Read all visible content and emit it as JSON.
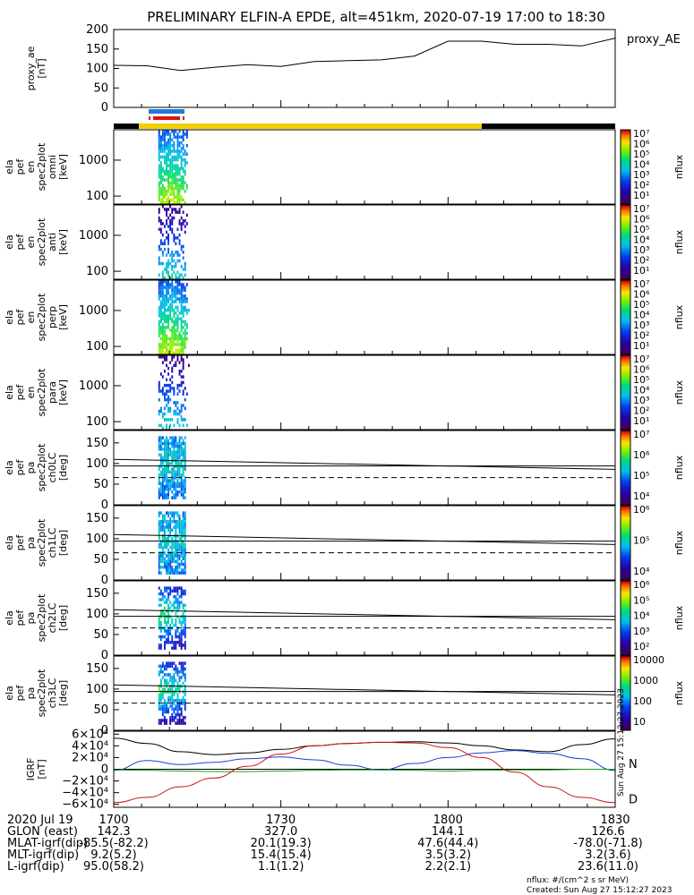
{
  "title": "PRELIMINARY ELFIN-A EPDE, alt=451km, 2020-07-19 17:00 to 18:30",
  "time_axis": {
    "date_label": "2020 Jul 19",
    "ticks": [
      "1700",
      "1730",
      "1800",
      "1830"
    ],
    "ephemeris": [
      {
        "label": "GLON (east)",
        "values": [
          "142.3",
          "327.0",
          "144.1",
          "126.6"
        ]
      },
      {
        "label": "MLAT-igrf(dip)",
        "values": [
          "-85.5(-82.2)",
          "20.1(19.3)",
          "47.6(44.4)",
          "-78.0(-71.8)"
        ]
      },
      {
        "label": "MLT-igrf(dip)",
        "values": [
          "9.2(5.2)",
          "15.4(15.4)",
          "3.5(3.2)",
          "3.2(3.6)"
        ]
      },
      {
        "label": "L-igrf(dip)",
        "values": [
          "95.0(58.2)",
          "1.1(1.2)",
          "2.2(2.1)",
          "23.6(11.0)"
        ]
      }
    ]
  },
  "footer": {
    "units": "nflux: #/(cm^2 s sr MeV)",
    "created": "Created: Sun Aug 27 15:12:27 2023",
    "side_stamp": "Sun Aug 27 15:12:27 2023"
  },
  "colors": {
    "series_black": "#000000",
    "series_blue": "#1f3fd0",
    "series_green": "#18a018",
    "series_red": "#d01010",
    "bar_yellow": "#f2d000",
    "bar_black": "#000000",
    "marker_blue": "#1c7ad6",
    "marker_red": "#e01010"
  },
  "chart_data": [
    {
      "type": "line",
      "panel": "proxy_ae",
      "ylabel": [
        "proxy_ae",
        "[nT]"
      ],
      "legend": "proxy_AE",
      "ylim": [
        0,
        200
      ],
      "yticks": [
        "0",
        "50",
        "100",
        "150",
        "200"
      ],
      "x": [
        "17:00",
        "17:06",
        "17:12",
        "17:18",
        "17:24",
        "17:30",
        "17:36",
        "17:42",
        "17:48",
        "17:54",
        "18:00",
        "18:06",
        "18:12",
        "18:18",
        "18:24",
        "18:30"
      ],
      "values": [
        108,
        107,
        95,
        103,
        110,
        105,
        118,
        120,
        122,
        132,
        170,
        170,
        162,
        162,
        158,
        178
      ]
    },
    {
      "type": "heatmap",
      "panel": "omni",
      "ylabel": [
        "ela",
        "pef",
        "en",
        "spec2plot",
        "omni",
        "[keV]"
      ],
      "yticks": [
        "100",
        "1000"
      ],
      "colorbar": {
        "label": "nflux",
        "ticks": [
          "10⁷",
          "10⁶",
          "10⁵",
          "10⁴",
          "10³",
          "10²",
          "10¹"
        ]
      },
      "active_interval": [
        "17:08",
        "17:14"
      ]
    },
    {
      "type": "heatmap",
      "panel": "anti",
      "ylabel": [
        "ela",
        "pef",
        "en",
        "spec2plot",
        "anti",
        "[keV]"
      ],
      "yticks": [
        "100",
        "1000"
      ],
      "colorbar": {
        "label": "nflux",
        "ticks": [
          "10⁷",
          "10⁶",
          "10⁵",
          "10⁴",
          "10³",
          "10²",
          "10¹"
        ]
      },
      "active_interval": [
        "17:08",
        "17:14"
      ]
    },
    {
      "type": "heatmap",
      "panel": "perp",
      "ylabel": [
        "ela",
        "pef",
        "en",
        "spec2plot",
        "perp",
        "[keV]"
      ],
      "yticks": [
        "100",
        "1000"
      ],
      "colorbar": {
        "label": "nflux",
        "ticks": [
          "10⁷",
          "10⁶",
          "10⁵",
          "10⁴",
          "10³",
          "10²",
          "10¹"
        ]
      },
      "active_interval": [
        "17:08",
        "17:14"
      ]
    },
    {
      "type": "heatmap",
      "panel": "para",
      "ylabel": [
        "ela",
        "pef",
        "en",
        "spec2plot",
        "para",
        "[keV]"
      ],
      "yticks": [
        "100",
        "1000"
      ],
      "colorbar": {
        "label": "nflux",
        "ticks": [
          "10⁷",
          "10⁶",
          "10⁵",
          "10⁴",
          "10³",
          "10²",
          "10¹"
        ]
      },
      "active_interval": [
        "17:08",
        "17:14"
      ]
    },
    {
      "type": "heatmap",
      "panel": "ch0LC",
      "ylabel": [
        "ela",
        "pef",
        "pa",
        "spec2plot",
        "ch0LC",
        "[deg]"
      ],
      "ylim": [
        0,
        180
      ],
      "yticks": [
        "0",
        "50",
        "100",
        "150"
      ],
      "colorbar": {
        "label": "nflux",
        "ticks": [
          "10⁷",
          "10⁶",
          "10⁵",
          "10⁴"
        ]
      },
      "active_interval": [
        "17:08",
        "17:14"
      ],
      "loss_cone_deg": [
        110,
        86
      ],
      "anti_loss_cone_deg": [
        70,
        94
      ],
      "dashed_deg": 66
    },
    {
      "type": "heatmap",
      "panel": "ch1LC",
      "ylabel": [
        "ela",
        "pef",
        "pa",
        "spec2plot",
        "ch1LC",
        "[deg]"
      ],
      "ylim": [
        0,
        180
      ],
      "yticks": [
        "0",
        "50",
        "100",
        "150"
      ],
      "colorbar": {
        "label": "nflux",
        "ticks": [
          "10⁶",
          "10⁵",
          "10⁴"
        ]
      },
      "active_interval": [
        "17:08",
        "17:14"
      ],
      "loss_cone_deg": [
        110,
        86
      ],
      "anti_loss_cone_deg": [
        70,
        94
      ],
      "dashed_deg": 66
    },
    {
      "type": "heatmap",
      "panel": "ch2LC",
      "ylabel": [
        "ela",
        "pef",
        "pa",
        "spec2plot",
        "ch2LC",
        "[deg]"
      ],
      "ylim": [
        0,
        180
      ],
      "yticks": [
        "0",
        "50",
        "100",
        "150"
      ],
      "colorbar": {
        "label": "nflux",
        "ticks": [
          "10⁶",
          "10⁵",
          "10⁴",
          "10³",
          "10²"
        ]
      },
      "active_interval": [
        "17:08",
        "17:14"
      ],
      "loss_cone_deg": [
        110,
        86
      ],
      "anti_loss_cone_deg": [
        70,
        94
      ],
      "dashed_deg": 66
    },
    {
      "type": "heatmap",
      "panel": "ch3LC",
      "ylabel": [
        "ela",
        "pef",
        "pa",
        "spec2plot",
        "ch3LC",
        "[deg]"
      ],
      "ylim": [
        0,
        180
      ],
      "yticks": [
        "0",
        "50",
        "100",
        "150"
      ],
      "colorbar": {
        "label": "nflux",
        "ticks": [
          "10000",
          "1000",
          "100",
          "10"
        ]
      },
      "active_interval": [
        "17:08",
        "17:14"
      ],
      "loss_cone_deg": [
        110,
        86
      ],
      "anti_loss_cone_deg": [
        70,
        94
      ],
      "dashed_deg": 66
    },
    {
      "type": "line",
      "panel": "IGRF",
      "ylabel": [
        "IGRF",
        "[nT]"
      ],
      "ylim": [
        -65000,
        65000
      ],
      "yticks": [
        "6×10⁴",
        "4×10⁴",
        "2×10⁴",
        "0",
        "−2×10⁴",
        "−4×10⁴",
        "−6×10⁴"
      ],
      "legend": [
        "N",
        "D"
      ],
      "x": [
        "17:00",
        "17:06",
        "17:12",
        "17:18",
        "17:24",
        "17:30",
        "17:36",
        "17:42",
        "17:48",
        "17:54",
        "18:00",
        "18:06",
        "18:12",
        "18:18",
        "18:24",
        "18:30"
      ],
      "series": [
        {
          "values": [
            53000,
            44000,
            30000,
            25000,
            28000,
            34000,
            40000,
            44000,
            46000,
            47000,
            45000,
            40000,
            33000,
            30000,
            42000,
            52000
          ]
        },
        {
          "name": "N",
          "values": [
            -2000,
            15000,
            8000,
            12000,
            18000,
            21000,
            16000,
            7000,
            -1000,
            10000,
            20000,
            28000,
            32000,
            27000,
            18000,
            -2000
          ]
        },
        {
          "values": [
            -1000,
            -2000,
            -3000,
            -4000,
            -4000,
            -3000,
            -2000,
            -1000,
            -1000,
            -2000,
            -3000,
            -2000,
            -1000,
            -1000,
            0,
            0
          ]
        },
        {
          "name": "D",
          "values": [
            -57000,
            -48000,
            -30000,
            -15000,
            5000,
            26000,
            40000,
            44000,
            46000,
            45000,
            37000,
            20000,
            -5000,
            -30000,
            -48000,
            -57000
          ]
        }
      ]
    }
  ]
}
